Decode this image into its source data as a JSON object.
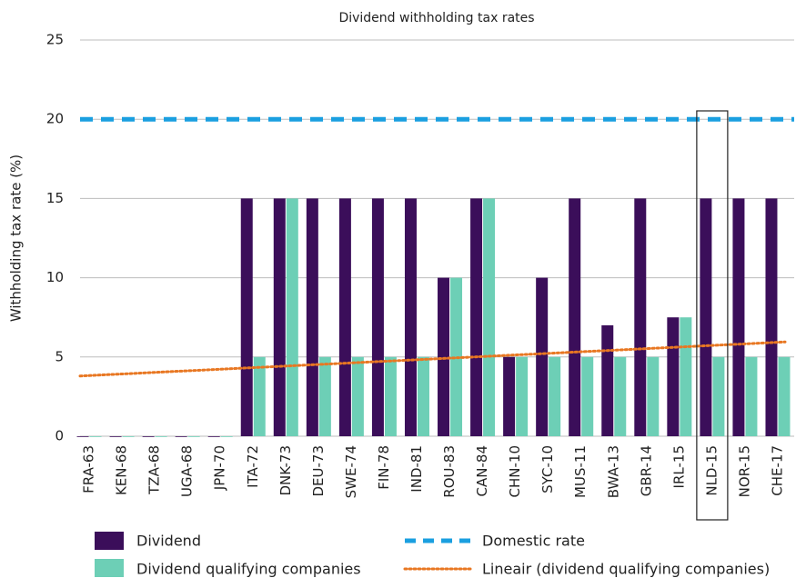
{
  "chart_data": {
    "type": "bar",
    "title": "Dividend withholding tax rates",
    "y_label": "Withholding tax rate (%)",
    "categories": [
      "FRA-63",
      "KEN-68",
      "TZA-68",
      "UGA-68",
      "JPN-70",
      "ITA-72",
      "DNK-73",
      "DEU-73",
      "SWE-74",
      "FIN-78",
      "IND-81",
      "ROU-83",
      "CAN-84",
      "CHN-10",
      "SYC-10",
      "MUS-11",
      "BWA-13",
      "GBR-14",
      "IRL-15",
      "NLD-15",
      "NOR-15",
      "CHE-17"
    ],
    "series": [
      {
        "name": "Dividend",
        "color": "#3b0e5a",
        "values": [
          0,
          0,
          0,
          0,
          0,
          15,
          15,
          15,
          15,
          15,
          15,
          10,
          15,
          5,
          10,
          15,
          7,
          15,
          7.5,
          15,
          15,
          15
        ]
      },
      {
        "name": "Dividend qualifying companies",
        "color": "#6dcfb6",
        "values": [
          0,
          0,
          0,
          0,
          0,
          5,
          15,
          5,
          5,
          5,
          5,
          10,
          15,
          5,
          5,
          5,
          5,
          5,
          7.5,
          5,
          5,
          5
        ]
      }
    ],
    "domestic_rate": {
      "name": "Domestic rate",
      "color": "#1a9fe0",
      "value": 20
    },
    "trendline": {
      "name": "Lineair (dividend qualifying companies)",
      "color": "#e87722",
      "start": 3.8,
      "end": 5.95
    },
    "ylim": [
      0,
      25
    ],
    "yticks": [
      0,
      5,
      10,
      15,
      20,
      25
    ],
    "grid": true
  }
}
